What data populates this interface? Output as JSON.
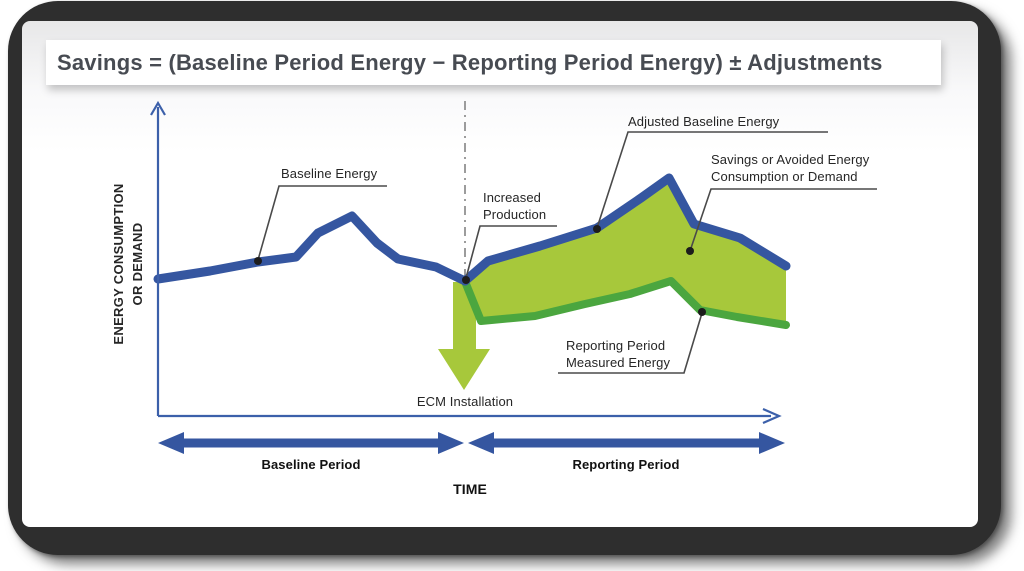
{
  "title_bar": {
    "formula": "Savings = (Baseline Period Energy − Reporting Period Energy) ± Adjustments"
  },
  "colors": {
    "line_blue": "#3556a0",
    "axis_blue": "#3c60aa",
    "savings_green": "#a7c83b",
    "measured_green": "#4ba63f",
    "frame_dark": "#2e2e2e",
    "leader_gray": "#4a4a4a",
    "event_line_gray": "#9c9c9c"
  },
  "axes": {
    "y_label_line1": "ENERGY CONSUMPTION",
    "y_label_line2": "OR DEMAND",
    "x_label": "TIME"
  },
  "annotations": {
    "baseline_energy": "Baseline Energy",
    "increased_production_line1": "Increased",
    "increased_production_line2": "Production",
    "adjusted_baseline": "Adjusted Baseline Energy",
    "savings_line1": "Savings or Avoided Energy",
    "savings_line2": "Consumption or Demand",
    "reporting_measured_line1": "Reporting Period",
    "reporting_measured_line2": "Measured Energy",
    "ecm": "ECM Installation"
  },
  "periods": {
    "baseline": "Baseline Period",
    "reporting": "Reporting Period"
  },
  "diagram": {
    "type": "line",
    "savings_area_color": "#a7c83b",
    "series": {
      "baseline": {
        "name": "Baseline Energy",
        "color": "#3556a0",
        "points": [
          [
            158,
            279
          ],
          [
            210,
            271
          ],
          [
            258,
            262
          ],
          [
            296,
            257
          ],
          [
            318,
            233
          ],
          [
            352,
            216
          ],
          [
            377,
            243
          ],
          [
            398,
            259
          ],
          [
            436,
            267
          ],
          [
            465,
            281
          ]
        ]
      },
      "adjusted_baseline": {
        "name": "Adjusted Baseline Energy",
        "color": "#3556a0",
        "points": [
          [
            465,
            281
          ],
          [
            488,
            261
          ],
          [
            540,
            246
          ],
          [
            597,
            228
          ],
          [
            641,
            198
          ],
          [
            669,
            178
          ],
          [
            694,
            224
          ],
          [
            740,
            238
          ],
          [
            786,
            266
          ]
        ]
      },
      "measured": {
        "name": "Reporting Period Measured Energy",
        "color": "#4ba63f",
        "points": [
          [
            466,
            284
          ],
          [
            481,
            321
          ],
          [
            535,
            316
          ],
          [
            585,
            304
          ],
          [
            630,
            294
          ],
          [
            671,
            281
          ],
          [
            700,
            310
          ],
          [
            737,
            317
          ],
          [
            786,
            325
          ]
        ]
      }
    }
  }
}
